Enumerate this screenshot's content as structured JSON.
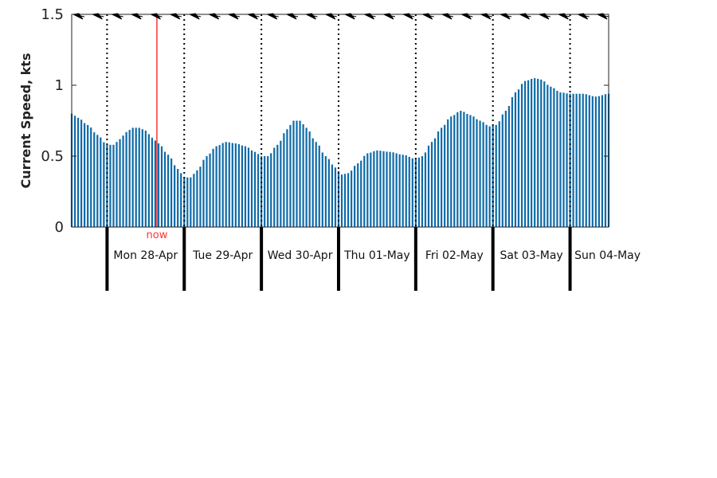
{
  "chart_data": {
    "type": "bar",
    "title": "",
    "xlabel": "",
    "ylabel": "Current Speed, kts",
    "ylim": [
      0,
      1.5
    ],
    "yticks": [
      {
        "value": 0,
        "label": "0"
      },
      {
        "value": 0.5,
        "label": "0.5"
      },
      {
        "value": 1,
        "label": "1"
      },
      {
        "value": 1.5,
        "label": "1.5"
      }
    ],
    "grid": false,
    "legend": "none",
    "x_start_hour": -11,
    "x_end_hour": 156,
    "bar_interval_hours": 1,
    "days": [
      {
        "label": "Mon 28-Apr",
        "start_hour": 0
      },
      {
        "label": "Tue 29-Apr",
        "start_hour": 24
      },
      {
        "label": "Wed 30-Apr",
        "start_hour": 48
      },
      {
        "label": "Thu 01-May",
        "start_hour": 72
      },
      {
        "label": "Fri 02-May",
        "start_hour": 96
      },
      {
        "label": "Sat 03-May",
        "start_hour": 120
      },
      {
        "label": "Sun 04-May",
        "start_hour": 144
      }
    ],
    "now": {
      "label": "now",
      "hour": 15.5,
      "color": "#ff3333"
    },
    "speed_keyframes": [
      [
        -11,
        0.8
      ],
      [
        -9,
        0.77
      ],
      [
        -6,
        0.72
      ],
      [
        -3,
        0.65
      ],
      [
        0,
        0.58
      ],
      [
        2,
        0.58
      ],
      [
        4,
        0.62
      ],
      [
        6,
        0.67
      ],
      [
        8,
        0.7
      ],
      [
        10,
        0.7
      ],
      [
        12,
        0.68
      ],
      [
        14,
        0.63
      ],
      [
        16,
        0.59
      ],
      [
        19,
        0.51
      ],
      [
        22,
        0.41
      ],
      [
        24,
        0.35
      ],
      [
        26,
        0.35
      ],
      [
        28,
        0.4
      ],
      [
        31,
        0.5
      ],
      [
        34,
        0.57
      ],
      [
        37,
        0.6
      ],
      [
        40,
        0.59
      ],
      [
        43,
        0.57
      ],
      [
        46,
        0.53
      ],
      [
        48,
        0.5
      ],
      [
        50,
        0.5
      ],
      [
        53,
        0.58
      ],
      [
        56,
        0.69
      ],
      [
        58,
        0.75
      ],
      [
        60,
        0.75
      ],
      [
        62,
        0.7
      ],
      [
        65,
        0.6
      ],
      [
        68,
        0.5
      ],
      [
        71,
        0.42
      ],
      [
        73,
        0.37
      ],
      [
        75,
        0.38
      ],
      [
        78,
        0.45
      ],
      [
        81,
        0.52
      ],
      [
        84,
        0.54
      ],
      [
        88,
        0.53
      ],
      [
        92,
        0.51
      ],
      [
        96,
        0.48
      ],
      [
        98,
        0.5
      ],
      [
        101,
        0.6
      ],
      [
        104,
        0.7
      ],
      [
        107,
        0.78
      ],
      [
        110,
        0.82
      ],
      [
        113,
        0.79
      ],
      [
        116,
        0.75
      ],
      [
        119,
        0.71
      ],
      [
        121,
        0.72
      ],
      [
        124,
        0.82
      ],
      [
        127,
        0.95
      ],
      [
        130,
        1.03
      ],
      [
        133,
        1.05
      ],
      [
        135,
        1.04
      ],
      [
        138,
        0.99
      ],
      [
        141,
        0.95
      ],
      [
        144,
        0.94
      ],
      [
        148,
        0.94
      ],
      [
        152,
        0.92
      ],
      [
        156,
        0.94
      ]
    ],
    "bar_color": "#0f6ba8",
    "direction_arrows": {
      "count": 28,
      "color": "#000000"
    }
  }
}
